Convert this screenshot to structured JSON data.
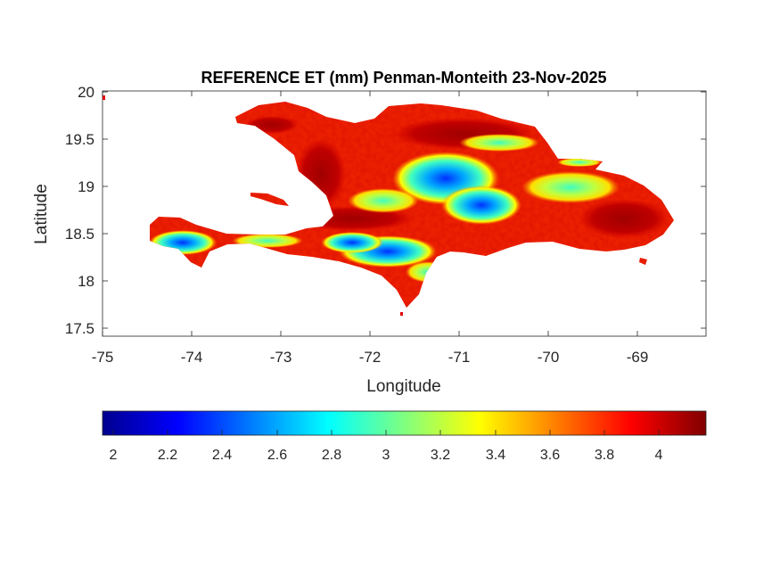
{
  "title": "REFERENCE ET (mm) Penman-Monteith 23-Nov-2025",
  "xlabel": "Longitude",
  "ylabel": "Latitude",
  "map": {
    "xlim": [
      -75,
      -68.23
    ],
    "ylim": [
      17.42,
      20.0
    ],
    "xticks": [
      -75,
      -74,
      -73,
      -72,
      -71,
      -70,
      -69
    ],
    "xtick_labels": [
      "-75",
      "-74",
      "-73",
      "-72",
      "-71",
      "-70",
      "-69"
    ],
    "yticks": [
      17.5,
      18,
      18.5,
      19,
      19.5,
      20
    ],
    "ytick_labels": [
      "17.5",
      "18",
      "18.5",
      "19",
      "19.5",
      "20"
    ],
    "colormap": "jet",
    "clim": [
      1.95,
      4.17
    ],
    "region": "Hispaniola (Haiti and Dominican Republic)"
  },
  "colorbar": {
    "ticks": [
      2,
      2.2,
      2.4,
      2.6,
      2.8,
      3,
      3.2,
      3.4,
      3.6,
      3.8,
      4
    ],
    "tick_labels": [
      "2",
      "2.2",
      "2.4",
      "2.6",
      "2.8",
      "3",
      "3.2",
      "3.4",
      "3.6",
      "3.8",
      "4"
    ],
    "colors": [
      "#00008f",
      "#0000ff",
      "#0080ff",
      "#00ffff",
      "#80ff80",
      "#ffff00",
      "#ff8000",
      "#ff0000",
      "#800000"
    ]
  }
}
